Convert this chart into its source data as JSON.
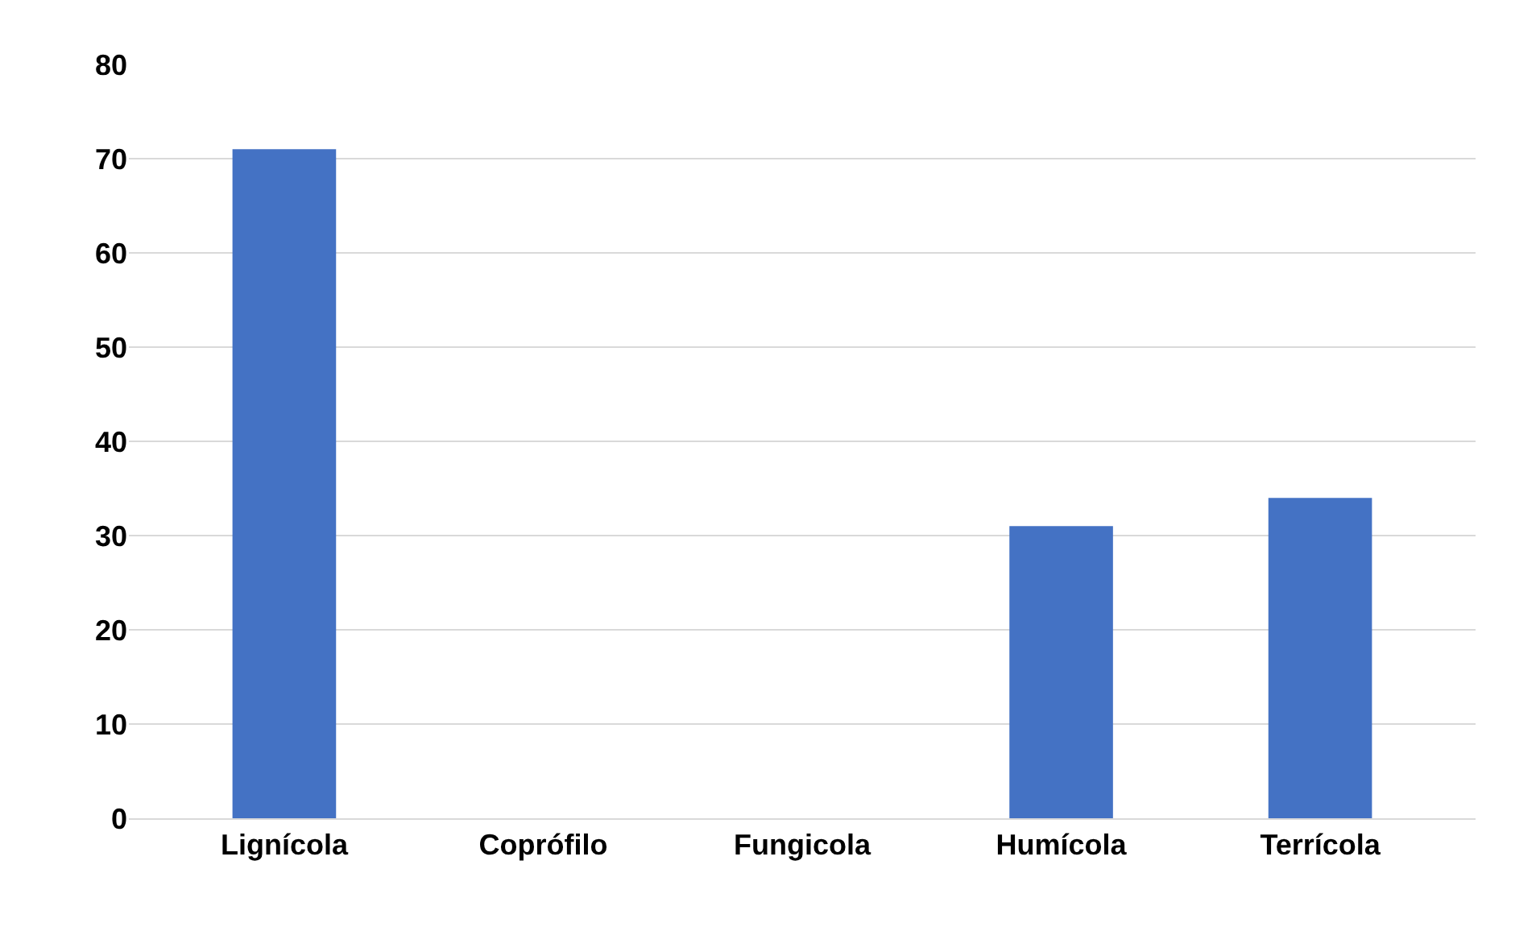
{
  "chart_data": {
    "type": "bar",
    "categories": [
      "Lignícola",
      "Coprófilo",
      "Fungicola",
      "Humícola",
      "Terrícola"
    ],
    "values": [
      71,
      0,
      0,
      31,
      34
    ],
    "color": "#4472c4",
    "ylim": [
      0,
      80
    ],
    "yticks": [
      0,
      10,
      20,
      30,
      40,
      50,
      60,
      70,
      80
    ],
    "grid": "y",
    "legend": false
  }
}
